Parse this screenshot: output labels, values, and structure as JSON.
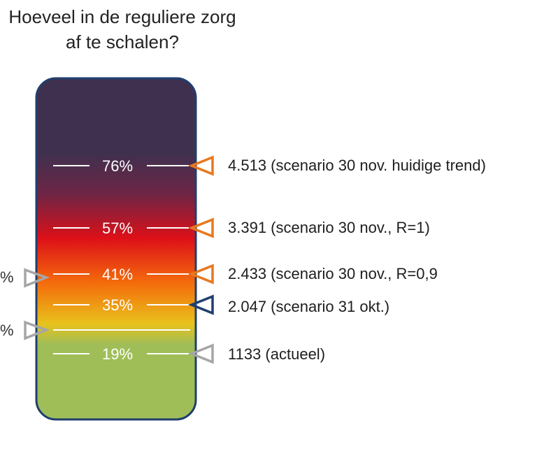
{
  "title": {
    "line1": "Hoeveel in de reguliere zorg",
    "line2": "af te schalen?"
  },
  "gauge": {
    "colors": {
      "top": "#40304f",
      "purple_red": "#6e2545",
      "red": "#dd1018",
      "orange": "#f46c0c",
      "yellow": "#e8c21c",
      "green": "#9fbe58",
      "border": "#1f3f6e"
    },
    "levels": [
      {
        "percent": "76%",
        "label": "4.513 (scenario 30 nov. huidige trend)",
        "marker_color": "#e8781e"
      },
      {
        "percent": "57%",
        "label": "3.391 (scenario 30 nov., R=1)",
        "marker_color": "#e8781e"
      },
      {
        "percent": "41%",
        "label": "2.433 (scenario 30 nov., R=0,9",
        "marker_color": "#e8781e"
      },
      {
        "percent": "35%",
        "label": "2.047 (scenario 31 okt.)",
        "marker_color": "#1f3f6e"
      },
      {
        "percent": "19%",
        "label": "1133 (actueel)",
        "marker_color": "#a6a6a6"
      }
    ],
    "left_markers": [
      {
        "text": "%",
        "color": "#a6a6a6"
      },
      {
        "text": "%",
        "color": "#a6a6a6"
      }
    ]
  }
}
